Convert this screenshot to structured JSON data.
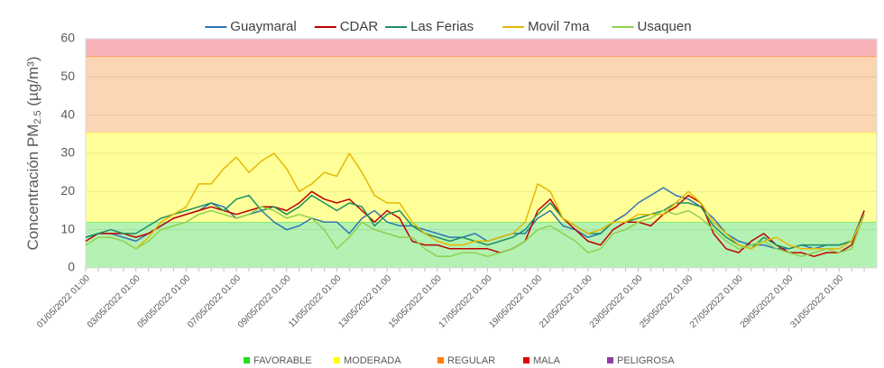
{
  "chart_data": {
    "type": "line",
    "ylabel": [
      "Concentración PM",
      "2.5",
      " (µg/m³)"
    ],
    "ylim": [
      0,
      60
    ],
    "yticks": [
      0,
      10,
      20,
      30,
      40,
      50,
      60
    ],
    "grid": true,
    "legend": "top",
    "bands": [
      {
        "name": "FAVORABLE",
        "color": "#22dd22",
        "fill": "#b3f2b3",
        "range": [
          0,
          12
        ]
      },
      {
        "name": "MODERADA",
        "color": "#ffff00",
        "fill": "#ffff99",
        "range": [
          12,
          35.4
        ]
      },
      {
        "name": "REGULAR",
        "color": "#ff7f0e",
        "fill": "#fcd5b4",
        "range": [
          35.4,
          55.4
        ]
      },
      {
        "name": "MALA",
        "color": "#e00000",
        "fill": "#f7b3b8",
        "range": [
          55.4,
          60
        ]
      },
      {
        "name": "PELIGROSA",
        "color": "#8e3fa0"
      }
    ],
    "categories": [
      "01/05/2022 01:00",
      null,
      null,
      null,
      "03/05/2022 01:00",
      null,
      null,
      null,
      "05/05/2022 01:00",
      null,
      null,
      null,
      "07/05/2022 01:00",
      null,
      null,
      null,
      "09/05/2022 01:00",
      null,
      null,
      null,
      "11/05/2022 01:00",
      null,
      null,
      null,
      "13/05/2022 01:00",
      null,
      null,
      null,
      "15/05/2022 01:00",
      null,
      null,
      null,
      "17/05/2022 01:00",
      null,
      null,
      null,
      "19/05/2022 01:00",
      null,
      null,
      null,
      "21/05/2022 01:00",
      null,
      null,
      null,
      "23/05/2022 01:00",
      null,
      null,
      null,
      "25/05/2022 01:00",
      null,
      null,
      null,
      "27/05/2022 01:00",
      null,
      null,
      null,
      "29/05/2022 01:00",
      null,
      null,
      null,
      "31/05/2022 01:00",
      null,
      null
    ],
    "series": [
      {
        "name": "Guaymaral",
        "color": "#2e75b6",
        "values": [
          8,
          9,
          9,
          8,
          7,
          9,
          11,
          13,
          14,
          15,
          17,
          16,
          13,
          14,
          15,
          12,
          10,
          11,
          13,
          12,
          12,
          9,
          13,
          15,
          12,
          11,
          11,
          10,
          9,
          8,
          8,
          9,
          7,
          8,
          9,
          9,
          13,
          15,
          11,
          10,
          8,
          9,
          12,
          14,
          17,
          19,
          21,
          19,
          18,
          16,
          13,
          9,
          7,
          6,
          6,
          5,
          5,
          6,
          5,
          6,
          6,
          7,
          15
        ]
      },
      {
        "name": "CDAR",
        "color": "#c00000",
        "values": [
          7,
          9,
          9,
          9,
          8,
          9,
          11,
          13,
          14,
          15,
          16,
          15,
          14,
          15,
          16,
          16,
          15,
          17,
          20,
          18,
          17,
          18,
          15,
          12,
          15,
          13,
          7,
          6,
          6,
          5,
          5,
          5,
          5,
          4,
          5,
          7,
          15,
          18,
          13,
          10,
          7,
          6,
          10,
          12,
          12,
          11,
          14,
          16,
          19,
          17,
          9,
          5,
          4,
          7,
          9,
          6,
          4,
          4,
          3,
          4,
          4,
          6,
          15
        ]
      },
      {
        "name": "Las Ferias",
        "color": "#1f8f60",
        "values": [
          8,
          9,
          10,
          9,
          9,
          11,
          13,
          14,
          15,
          16,
          17,
          15,
          18,
          19,
          15,
          16,
          14,
          16,
          19,
          17,
          15,
          17,
          16,
          11,
          14,
          15,
          11,
          9,
          8,
          7,
          8,
          7,
          6,
          7,
          8,
          10,
          14,
          17,
          13,
          11,
          9,
          9,
          12,
          12,
          13,
          14,
          15,
          17,
          17,
          16,
          11,
          8,
          6,
          5,
          8,
          6,
          5,
          6,
          6,
          6,
          6,
          7,
          14
        ]
      },
      {
        "name": "Movil 7ma",
        "color": "#e6b800",
        "values": [
          null,
          null,
          null,
          null,
          5,
          8,
          12,
          14,
          16,
          22,
          22,
          26,
          29,
          25,
          28,
          30,
          26,
          20,
          22,
          25,
          24,
          30,
          25,
          19,
          17,
          17,
          12,
          9,
          7,
          6,
          6,
          7,
          7,
          8,
          9,
          12,
          22,
          20,
          13,
          11,
          9,
          10,
          12,
          12,
          14,
          14,
          14,
          17,
          20,
          17,
          12,
          9,
          6,
          5,
          7,
          8,
          6,
          5,
          5,
          5,
          5,
          7,
          14
        ]
      },
      {
        "name": "Usaquen",
        "color": "#92d050",
        "values": [
          6,
          8,
          8,
          7,
          5,
          7,
          10,
          11,
          12,
          14,
          15,
          14,
          13,
          14,
          16,
          15,
          13,
          14,
          13,
          10,
          5,
          8,
          12,
          10,
          9,
          8,
          8,
          5,
          3,
          3,
          4,
          4,
          3,
          4,
          5,
          7,
          10,
          11,
          9,
          7,
          4,
          5,
          9,
          10,
          12,
          13,
          15,
          14,
          15,
          13,
          10,
          7,
          5,
          6,
          7,
          5,
          4,
          3,
          4,
          5,
          4,
          5,
          14
        ]
      }
    ]
  }
}
